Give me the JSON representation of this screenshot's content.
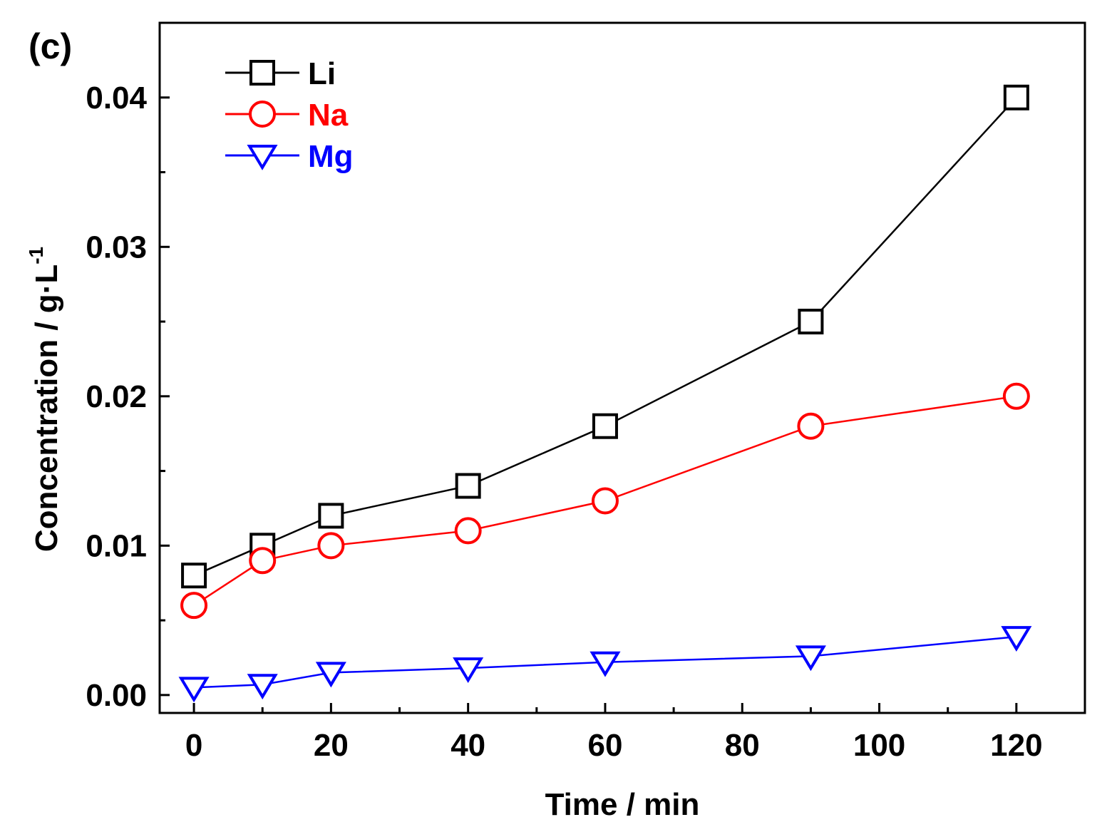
{
  "panel_label": "(c)",
  "chart_data": {
    "type": "line",
    "title": "",
    "xlabel": "Time / min",
    "ylabel_main": "Concentration / g·L",
    "ylabel_sup": "-1",
    "xlim": [
      -5,
      130
    ],
    "ylim": [
      -0.0012,
      0.045
    ],
    "x_ticks": [
      0,
      20,
      40,
      60,
      80,
      100,
      120
    ],
    "y_ticks": [
      0.0,
      0.01,
      0.02,
      0.03,
      0.04
    ],
    "y_tick_labels": [
      "0.00",
      "0.01",
      "0.02",
      "0.03",
      "0.04"
    ],
    "legend_position": "top-left",
    "x": [
      0,
      10,
      20,
      40,
      60,
      90,
      120
    ],
    "series": [
      {
        "name": "Li",
        "color": "#000000",
        "marker": "square",
        "values": [
          0.008,
          0.01,
          0.012,
          0.014,
          0.018,
          0.025,
          0.04
        ]
      },
      {
        "name": "Na",
        "color": "#ff0000",
        "marker": "circle",
        "values": [
          0.006,
          0.009,
          0.01,
          0.011,
          0.013,
          0.018,
          0.02
        ]
      },
      {
        "name": "Mg",
        "color": "#0000ff",
        "marker": "triangle-down",
        "values": [
          0.0005,
          0.0007,
          0.0015,
          0.0018,
          0.0022,
          0.0026,
          0.0039
        ]
      }
    ]
  }
}
